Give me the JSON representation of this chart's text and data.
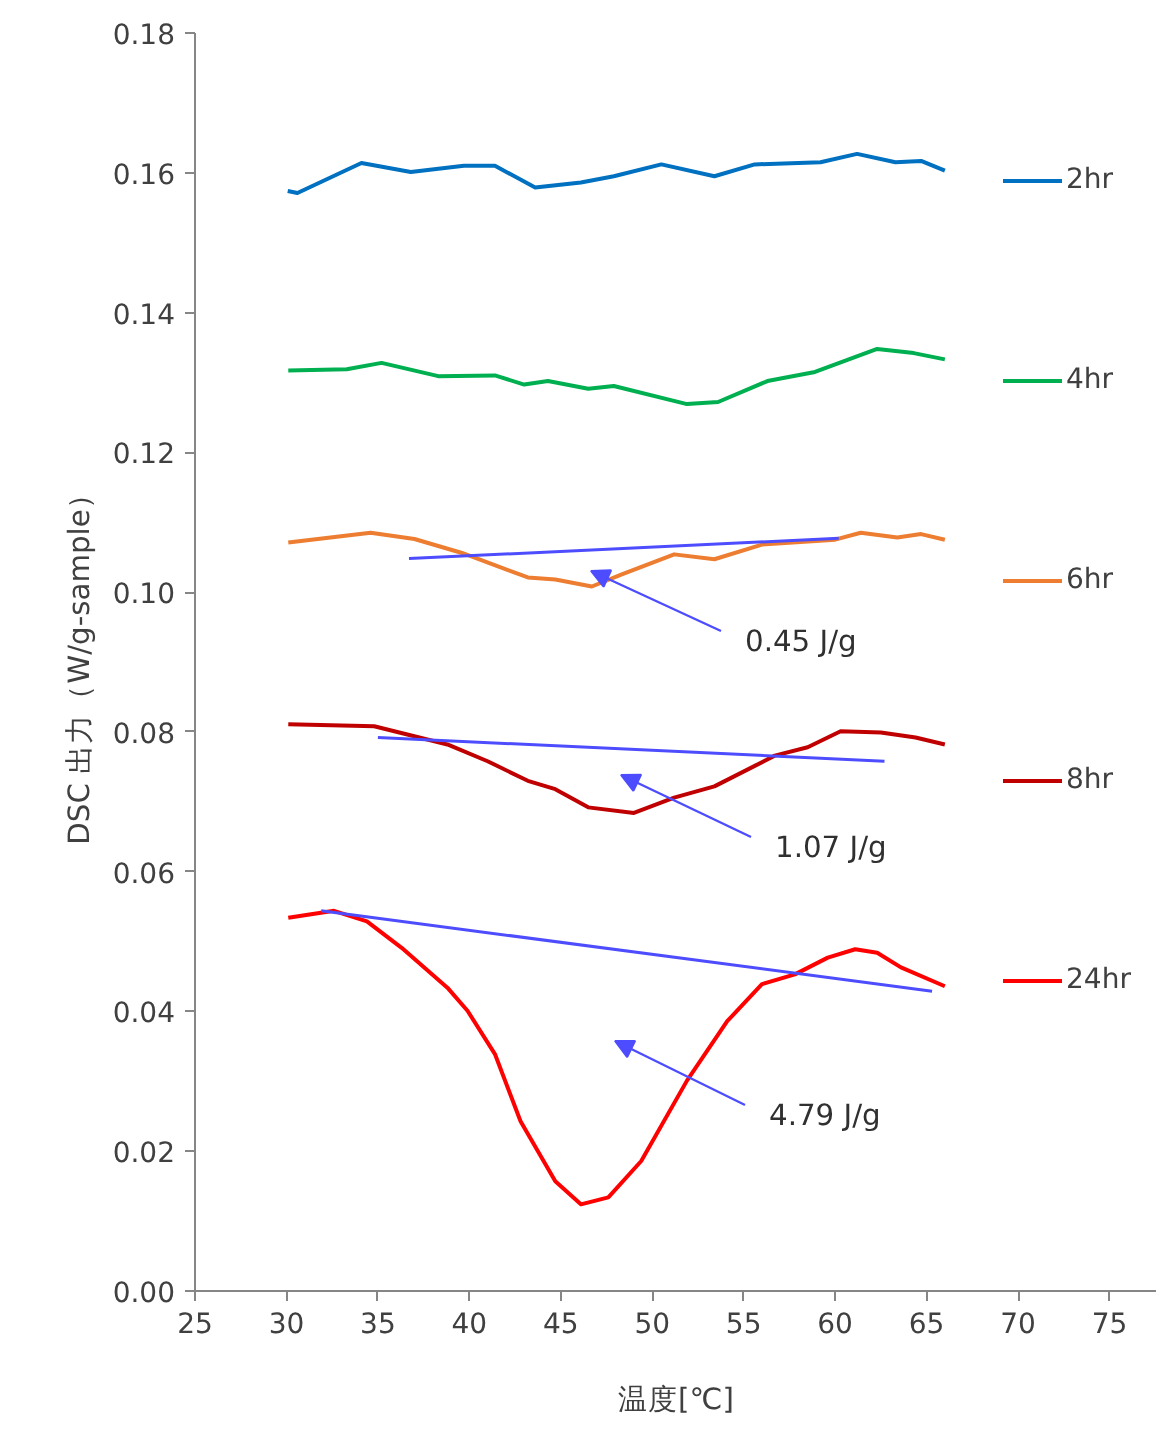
{
  "chart_data": {
    "type": "line",
    "xlabel": "温度[℃]",
    "ylabel": "DSC 出力（W/g-sample）",
    "xlim": [
      25,
      77.6
    ],
    "xticks": [
      25,
      30,
      35,
      40,
      45,
      50,
      55,
      60,
      65,
      70,
      75
    ],
    "ylim": [
      0,
      0.18
    ],
    "yticks": [
      {
        "value": 0,
        "label": "0.00"
      },
      0.02,
      0.04,
      0.06,
      0.08,
      {
        "value": 0.1,
        "label": "0.10"
      },
      0.12,
      0.14,
      0.16,
      0.18
    ],
    "grid": false,
    "legend": "right",
    "marker": "none",
    "line_style": "solid",
    "series": [
      {
        "name": "2hr",
        "color": "#0070c0",
        "x": [
          30.07,
          30.6,
          34.1,
          36.8,
          39.7,
          41.4,
          43.6,
          46.1,
          47.9,
          50.5,
          53.4,
          55.6,
          59.2,
          61.2,
          63.3,
          64.7,
          66.0
        ],
        "values": [
          0.1574,
          0.1571,
          0.1614,
          0.1601,
          0.161,
          0.161,
          0.1579,
          0.1586,
          0.1595,
          0.1612,
          0.1595,
          0.1612,
          0.1615,
          0.1627,
          0.1615,
          0.1617,
          0.1603
        ]
      },
      {
        "name": "4hr",
        "color": "#00b050",
        "x": [
          30.1,
          33.3,
          35.2,
          38.3,
          41.4,
          43.0,
          44.3,
          46.5,
          47.9,
          51.9,
          53.6,
          56.3,
          58.9,
          62.3,
          64.3,
          66.0
        ],
        "values": [
          0.1317,
          0.1319,
          0.1328,
          0.1309,
          0.131,
          0.1297,
          0.1302,
          0.1291,
          0.1295,
          0.1269,
          0.1272,
          0.1302,
          0.1315,
          0.1348,
          0.1342,
          0.1333
        ]
      },
      {
        "name": "6hr",
        "color": "#ed7d31",
        "x": [
          30.1,
          34.6,
          37.0,
          39.6,
          43.2,
          44.7,
          46.7,
          48.3,
          51.2,
          53.4,
          56.0,
          60.0,
          61.4,
          63.4,
          64.7,
          66.0
        ],
        "values": [
          0.1071,
          0.1085,
          0.1076,
          0.1056,
          0.1021,
          0.1018,
          0.1008,
          0.1025,
          0.1054,
          0.1047,
          0.1068,
          0.1075,
          0.1085,
          0.1078,
          0.1083,
          0.1075
        ]
      },
      {
        "name": "8hr",
        "color": "#c00000",
        "x": [
          30.1,
          34.8,
          38.8,
          41.0,
          43.2,
          44.7,
          46.5,
          49.0,
          51.2,
          53.4,
          56.7,
          58.5,
          60.3,
          62.5,
          64.4,
          66.0
        ],
        "values": [
          0.0811,
          0.0808,
          0.0782,
          0.0758,
          0.073,
          0.0718,
          0.0692,
          0.0684,
          0.0706,
          0.0722,
          0.0766,
          0.0778,
          0.0801,
          0.0799,
          0.0792,
          0.0782
        ]
      },
      {
        "name": "24hr",
        "color": "#ff0000",
        "x": [
          30.1,
          32.6,
          34.4,
          36.3,
          38.8,
          39.9,
          41.4,
          42.8,
          44.7,
          46.1,
          47.6,
          49.4,
          51.9,
          54.1,
          56.0,
          57.8,
          59.6,
          61.1,
          62.3,
          63.6,
          66.0
        ],
        "values": [
          0.0534,
          0.0544,
          0.0529,
          0.0491,
          0.0434,
          0.0401,
          0.0339,
          0.0243,
          0.0157,
          0.0124,
          0.0134,
          0.0186,
          0.0301,
          0.0386,
          0.0439,
          0.0453,
          0.0477,
          0.0489,
          0.0484,
          0.0463,
          0.0436
        ]
      },
      {
        "color": "#4d4dff",
        "x": [
          36.7,
          60.2
        ],
        "values": [
          0.1048,
          0.1077
        ]
      },
      {
        "color": "#4d4dff",
        "x": [
          35.0,
          62.7
        ],
        "values": [
          0.0792,
          0.0758
        ]
      },
      {
        "color": "#4d4dff",
        "x": [
          31.9,
          65.3
        ],
        "values": [
          0.0544,
          0.0429
        ]
      }
    ],
    "annotations": [
      "0.45 J/g",
      "1.07 J/g",
      "4.79 J/g"
    ]
  }
}
